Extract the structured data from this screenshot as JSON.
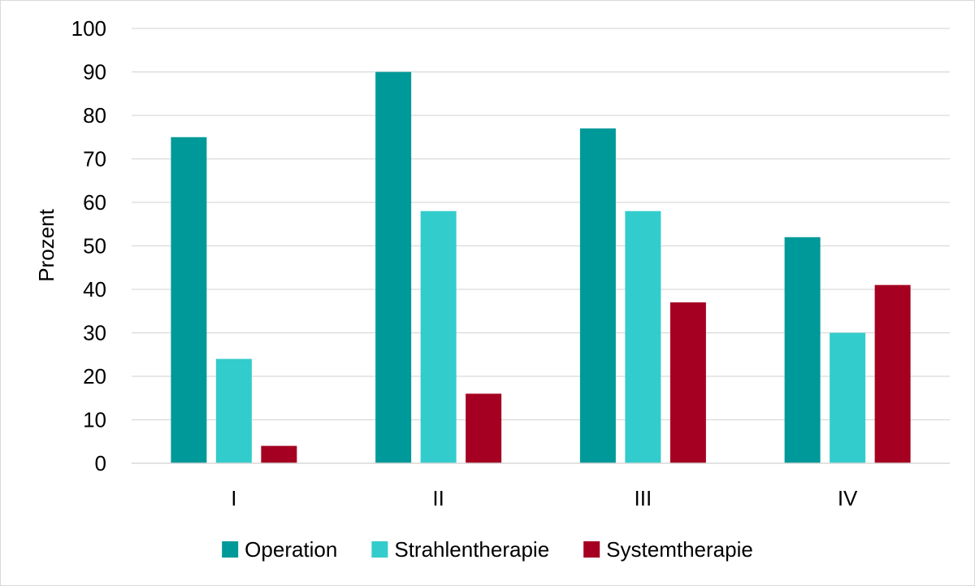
{
  "chart_data": {
    "type": "bar",
    "title": "",
    "xlabel": "",
    "ylabel": "Prozent",
    "ylim": [
      0,
      100
    ],
    "yticks": [
      0,
      10,
      20,
      30,
      40,
      50,
      60,
      70,
      80,
      90,
      100
    ],
    "grid": true,
    "legend_position": "bottom",
    "categories": [
      "I",
      "II",
      "III",
      "IV"
    ],
    "series": [
      {
        "name": "Operation",
        "color": "#009999",
        "values": [
          75,
          90,
          77,
          52
        ]
      },
      {
        "name": "Strahlentherapie",
        "color": "#33CCCC",
        "values": [
          24,
          58,
          58,
          30
        ]
      },
      {
        "name": "Systemtherapie",
        "color": "#A50021",
        "values": [
          4,
          16,
          37,
          41
        ]
      }
    ]
  }
}
